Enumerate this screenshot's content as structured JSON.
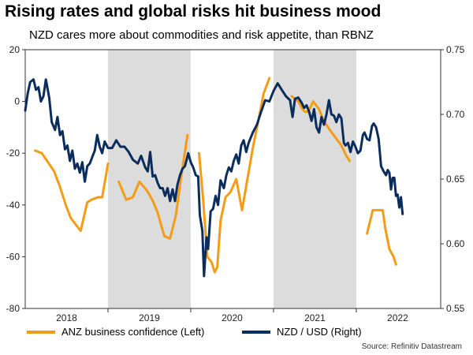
{
  "title": "Rising rates and global risks hit business mood",
  "subtitle": "NZD cares more about commodities and risk appetite, than RBNZ",
  "source": "Source: Refinitiv Datastream",
  "colors": {
    "anz": "#F59C16",
    "nzd": "#0B2D5E",
    "shade": "#DCDCDC"
  },
  "chart_data": {
    "type": "line",
    "x_tick_labels": [
      "2018",
      "2019",
      "2020",
      "2021",
      "2022"
    ],
    "x_range": [
      2017.5,
      2022.52
    ],
    "shaded_periods": [
      [
        2018.5,
        2019.5
      ],
      [
        2020.5,
        2021.5
      ]
    ],
    "left_axis": {
      "label": "ANZ business confidence (Left)",
      "ylim": [
        -80,
        20
      ],
      "ticks": [
        "20",
        "0",
        "-20",
        "-40",
        "-60",
        "-80"
      ]
    },
    "right_axis": {
      "label": "NZD / USD (Right)",
      "ylim": [
        0.55,
        0.75
      ],
      "ticks": [
        "0.75",
        "0.70",
        "0.65",
        "0.60",
        "0.55"
      ]
    },
    "series": [
      {
        "name": "ANZ business confidence (Left)",
        "axis": "left",
        "segments": [
          [
            [
              2017.62,
              -19
            ],
            [
              2017.7,
              -20
            ],
            [
              2017.85,
              -27
            ],
            [
              2017.92,
              -33
            ],
            [
              2017.99,
              -40
            ],
            [
              2018.05,
              -45
            ],
            [
              2018.12,
              -48
            ],
            [
              2018.17,
              -50
            ],
            [
              2018.25,
              -39
            ],
            [
              2018.3,
              -38
            ],
            [
              2018.38,
              -37
            ],
            [
              2018.43,
              -37
            ],
            [
              2018.5,
              -24
            ]
          ],
          [
            [
              2018.63,
              -31
            ],
            [
              2018.72,
              -38
            ],
            [
              2018.8,
              -37
            ],
            [
              2018.88,
              -31
            ],
            [
              2018.96,
              -34
            ],
            [
              2019.0,
              -36
            ],
            [
              2019.05,
              -39
            ],
            [
              2019.1,
              -43
            ],
            [
              2019.18,
              -52
            ],
            [
              2019.25,
              -53
            ],
            [
              2019.32,
              -44
            ],
            [
              2019.38,
              -30
            ],
            [
              2019.46,
              -13
            ]
          ],
          [
            [
              2019.6,
              -20
            ],
            [
              2019.65,
              -38
            ],
            [
              2019.7,
              -60
            ],
            [
              2019.75,
              -62
            ],
            [
              2019.79,
              -66
            ],
            [
              2019.82,
              -64
            ],
            [
              2019.86,
              -46
            ],
            [
              2019.92,
              -37
            ],
            [
              2019.98,
              -35
            ],
            [
              2020.05,
              -30
            ],
            [
              2020.12,
              -42
            ],
            [
              2020.18,
              -31
            ],
            [
              2020.25,
              -18
            ],
            [
              2020.32,
              -7
            ],
            [
              2020.38,
              3
            ],
            [
              2020.45,
              9
            ]
          ],
          [
            [
              2020.72,
              2
            ],
            [
              2020.8,
              0
            ],
            [
              2020.85,
              -3
            ],
            [
              2020.88,
              -4
            ],
            [
              2020.92,
              -4
            ],
            [
              2020.98,
              0
            ],
            [
              2021.05,
              -3
            ],
            [
              2021.1,
              -7
            ],
            [
              2021.18,
              -11
            ],
            [
              2021.25,
              -14
            ],
            [
              2021.32,
              -17
            ],
            [
              2021.38,
              -21
            ],
            [
              2021.42,
              -23
            ]
          ],
          [
            [
              2021.63,
              -51
            ],
            [
              2021.7,
              -42
            ],
            [
              2021.78,
              -42
            ],
            [
              2021.82,
              -42
            ],
            [
              2021.85,
              -49
            ],
            [
              2021.9,
              -57
            ],
            [
              2021.95,
              -60
            ],
            [
              2021.98,
              -63
            ]
          ]
        ]
      },
      {
        "name": "NZD / USD (Right)",
        "axis": "right",
        "segments": [
          [
            [
              2017.5,
              0.703
            ],
            [
              2017.53,
              0.716
            ],
            [
              2017.56,
              0.725
            ],
            [
              2017.6,
              0.727
            ],
            [
              2017.63,
              0.719
            ],
            [
              2017.66,
              0.721
            ],
            [
              2017.69,
              0.71
            ],
            [
              2017.72,
              0.714
            ],
            [
              2017.75,
              0.727
            ],
            [
              2017.79,
              0.713
            ],
            [
              2017.82,
              0.694
            ],
            [
              2017.86,
              0.688
            ],
            [
              2017.89,
              0.698
            ],
            [
              2017.92,
              0.684
            ],
            [
              2017.95,
              0.687
            ],
            [
              2017.98,
              0.673
            ],
            [
              2018.01,
              0.676
            ],
            [
              2018.04,
              0.664
            ],
            [
              2018.07,
              0.672
            ],
            [
              2018.1,
              0.658
            ],
            [
              2018.13,
              0.662
            ],
            [
              2018.16,
              0.655
            ],
            [
              2018.19,
              0.663
            ],
            [
              2018.22,
              0.648
            ],
            [
              2018.25,
              0.66
            ],
            [
              2018.28,
              0.662
            ],
            [
              2018.31,
              0.667
            ],
            [
              2018.34,
              0.672
            ],
            [
              2018.37,
              0.684
            ],
            [
              2018.4,
              0.675
            ],
            [
              2018.43,
              0.67
            ],
            [
              2018.46,
              0.679
            ],
            [
              2018.5,
              0.674
            ],
            [
              2018.55,
              0.674
            ],
            [
              2018.6,
              0.68
            ],
            [
              2018.65,
              0.675
            ],
            [
              2018.7,
              0.675
            ],
            [
              2018.75,
              0.671
            ],
            [
              2018.8,
              0.665
            ],
            [
              2018.86,
              0.662
            ],
            [
              2018.9,
              0.668
            ],
            [
              2018.95,
              0.659
            ],
            [
              2018.98,
              0.656
            ],
            [
              2019.01,
              0.671
            ],
            [
              2019.04,
              0.652
            ],
            [
              2019.07,
              0.653
            ],
            [
              2019.1,
              0.647
            ],
            [
              2019.13,
              0.643
            ],
            [
              2019.16,
              0.643
            ],
            [
              2019.19,
              0.637
            ],
            [
              2019.22,
              0.643
            ],
            [
              2019.25,
              0.633
            ],
            [
              2019.28,
              0.642
            ],
            [
              2019.31,
              0.633
            ],
            [
              2019.34,
              0.646
            ],
            [
              2019.37,
              0.653
            ],
            [
              2019.4,
              0.658
            ],
            [
              2019.43,
              0.66
            ],
            [
              2019.47,
              0.67
            ],
            [
              2019.5,
              0.663
            ],
            [
              2019.53,
              0.659
            ],
            [
              2019.56,
              0.653
            ],
            [
              2019.59,
              0.652
            ],
            [
              2019.61,
              0.622
            ],
            [
              2019.64,
              0.61
            ],
            [
              2019.66,
              0.575
            ],
            [
              2019.69,
              0.605
            ],
            [
              2019.71,
              0.596
            ],
            [
              2019.74,
              0.625
            ],
            [
              2019.77,
              0.627
            ],
            [
              2019.8,
              0.637
            ],
            [
              2019.83,
              0.63
            ],
            [
              2019.86,
              0.649
            ],
            [
              2019.9,
              0.643
            ],
            [
              2019.93,
              0.653
            ],
            [
              2019.96,
              0.659
            ],
            [
              2019.99,
              0.656
            ],
            [
              2020.02,
              0.664
            ],
            [
              2020.05,
              0.669
            ],
            [
              2020.08,
              0.662
            ],
            [
              2020.11,
              0.676
            ],
            [
              2020.14,
              0.68
            ],
            [
              2020.17,
              0.671
            ],
            [
              2020.2,
              0.678
            ],
            [
              2020.25,
              0.686
            ],
            [
              2020.3,
              0.692
            ],
            [
              2020.35,
              0.702
            ],
            [
              2020.4,
              0.711
            ],
            [
              2020.45,
              0.71
            ],
            [
              2020.5,
              0.718
            ],
            [
              2020.55,
              0.724
            ],
            [
              2020.6,
              0.719
            ],
            [
              2020.65,
              0.714
            ],
            [
              2020.7,
              0.711
            ],
            [
              2020.73,
              0.698
            ],
            [
              2020.76,
              0.712
            ],
            [
              2020.8,
              0.713
            ],
            [
              2020.84,
              0.709
            ],
            [
              2020.87,
              0.705
            ],
            [
              2020.9,
              0.707
            ],
            [
              2020.93,
              0.702
            ],
            [
              2020.96,
              0.695
            ],
            [
              2020.99,
              0.704
            ],
            [
              2021.02,
              0.69
            ],
            [
              2021.05,
              0.686
            ],
            [
              2021.08,
              0.698
            ],
            [
              2021.11,
              0.692
            ],
            [
              2021.14,
              0.7
            ],
            [
              2021.17,
              0.711
            ],
            [
              2021.2,
              0.7
            ],
            [
              2021.23,
              0.699
            ],
            [
              2021.26,
              0.694
            ],
            [
              2021.29,
              0.7
            ],
            [
              2021.32,
              0.697
            ],
            [
              2021.35,
              0.678
            ],
            [
              2021.37,
              0.676
            ],
            [
              2021.4,
              0.678
            ],
            [
              2021.43,
              0.671
            ],
            [
              2021.46,
              0.679
            ],
            [
              2021.49,
              0.675
            ],
            [
              2021.52,
              0.67
            ],
            [
              2021.55,
              0.672
            ],
            [
              2021.58,
              0.684
            ],
            [
              2021.6,
              0.686
            ],
            [
              2021.63,
              0.681
            ],
            [
              2021.66,
              0.68
            ],
            [
              2021.69,
              0.691
            ],
            [
              2021.71,
              0.693
            ],
            [
              2021.74,
              0.69
            ],
            [
              2021.77,
              0.681
            ],
            [
              2021.8,
              0.66
            ],
            [
              2021.83,
              0.656
            ],
            [
              2021.86,
              0.653
            ],
            [
              2021.88,
              0.657
            ],
            [
              2021.9,
              0.655
            ],
            [
              2021.92,
              0.642
            ],
            [
              2021.94,
              0.651
            ],
            [
              2021.96,
              0.651
            ],
            [
              2021.98,
              0.637
            ],
            [
              2022.0,
              0.638
            ],
            [
              2022.02,
              0.628
            ],
            [
              2022.04,
              0.636
            ],
            [
              2022.06,
              0.623
            ]
          ]
        ]
      }
    ]
  }
}
